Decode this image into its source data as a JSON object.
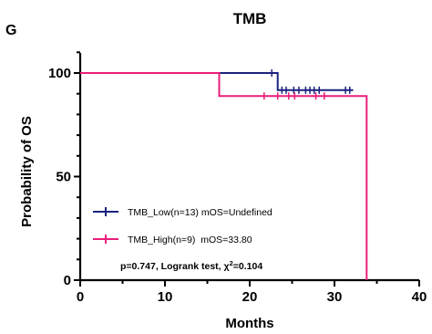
{
  "chart_data": {
    "type": "line",
    "panel_label": "G",
    "title": "TMB",
    "xlabel": "Months",
    "ylabel": "Probability of OS",
    "xlim": [
      0,
      40
    ],
    "ylim": [
      0,
      100
    ],
    "x_ticks": [
      0,
      10,
      20,
      30,
      40
    ],
    "y_ticks": [
      0,
      50,
      100
    ],
    "x_tick_labels": [
      "0",
      "10",
      "20",
      "30",
      "40"
    ],
    "y_tick_labels": [
      "0",
      "50",
      "100"
    ],
    "grid": false,
    "legend_placement": "bottom-left",
    "series": [
      {
        "name": "TMB_Low(n=13) mOS=Undefined",
        "color": "#1a237e",
        "steps": [
          [
            0,
            100
          ],
          [
            23.3,
            100
          ],
          [
            23.3,
            91.7
          ],
          [
            32.2,
            91.7
          ]
        ],
        "censored": [
          [
            22.6,
            100
          ],
          [
            23.8,
            91.7
          ],
          [
            24.3,
            91.7
          ],
          [
            25.2,
            91.7
          ],
          [
            25.8,
            91.7
          ],
          [
            26.6,
            91.7
          ],
          [
            27.1,
            91.7
          ],
          [
            27.6,
            91.7
          ],
          [
            28.2,
            91.7
          ],
          [
            31.3,
            91.7
          ],
          [
            31.8,
            91.7
          ]
        ]
      },
      {
        "name": "TMB_High(n=9)  mOS=33.80",
        "color": "#e91e7a",
        "steps": [
          [
            0,
            100
          ],
          [
            16.4,
            100
          ],
          [
            16.4,
            88.9
          ],
          [
            33.8,
            88.9
          ],
          [
            33.8,
            0
          ]
        ],
        "censored": [
          [
            21.7,
            88.9
          ],
          [
            23.3,
            88.9
          ],
          [
            24.6,
            88.9
          ],
          [
            25.3,
            88.9
          ],
          [
            27.8,
            88.9
          ],
          [
            28.8,
            88.9
          ]
        ]
      }
    ],
    "annotation": {
      "p_value": "p=0.747,",
      "test": "Logrank test,",
      "chi_symbol": "χ",
      "chi_sup": "2",
      "chi_value": "=0.104"
    }
  }
}
